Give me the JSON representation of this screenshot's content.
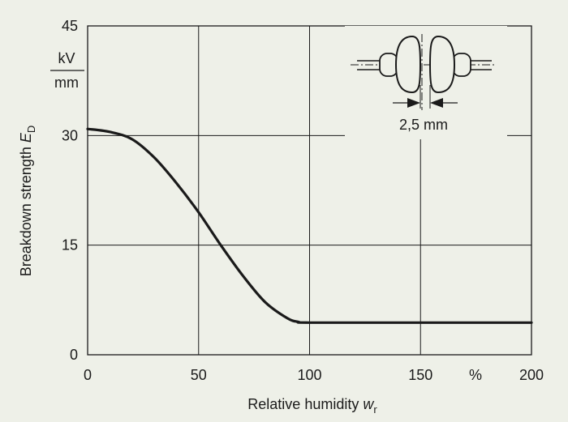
{
  "chart_data": {
    "type": "line",
    "xlabel": "Relative humidity",
    "xlabel_symbol": "w",
    "xlabel_subscript": "r",
    "x_unit": "%",
    "ylabel": "Breakdown strength",
    "ylabel_symbol": "E",
    "ylabel_subscript": "D",
    "y_unit_numerator": "kV",
    "y_unit_denominator": "mm",
    "xlim": [
      0,
      200
    ],
    "ylim": [
      0,
      45
    ],
    "x_ticks": [
      "0",
      "50",
      "100",
      "150",
      "200"
    ],
    "y_ticks": [
      "0",
      "15",
      "30",
      "45"
    ],
    "grid": true,
    "series": [
      {
        "x": [
          0,
          10,
          20,
          30,
          40,
          50,
          60,
          70,
          80,
          90,
          95,
          100,
          150,
          200
        ],
        "y": [
          30.9,
          30.5,
          29.5,
          27.0,
          23.5,
          19.5,
          15.0,
          10.8,
          7.2,
          5.0,
          4.5,
          4.4,
          4.4,
          4.4
        ]
      }
    ],
    "inset": {
      "gap_label": "2,5 mm"
    }
  }
}
